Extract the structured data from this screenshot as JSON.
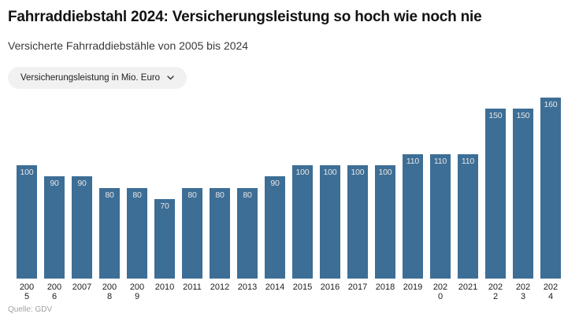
{
  "page": {
    "title": "Fahrraddiebstahl 2024: Versicherungsleistung so hoch wie noch nie",
    "subtitle": "Versicherte Fahrraddiebstähle von 2005 bis 2024",
    "source": "Quelle: GDV"
  },
  "dropdown": {
    "selected": "Versicherungsleistung in Mio. Euro",
    "icon": "chevron-down"
  },
  "colors": {
    "bar": "#3d6e96",
    "value_label": "#e6e6e6",
    "title": "#131313",
    "subtitle": "#3a3a3a",
    "pill_bg": "#f1f1f2",
    "tick_label": "#1c1c1c",
    "source": "#a2a2a2"
  },
  "chart_data": {
    "type": "bar",
    "title": "Fahrraddiebstahl 2024: Versicherungsleistung so hoch wie noch nie",
    "subtitle": "Versicherte Fahrraddiebstähle von 2005 bis 2024",
    "metric": "Versicherungsleistung in Mio. Euro",
    "categories": [
      "2005",
      "2006",
      "2007",
      "2008",
      "2009",
      "2010",
      "2011",
      "2012",
      "2013",
      "2014",
      "2015",
      "2016",
      "2017",
      "2018",
      "2019",
      "2020",
      "2021",
      "2022",
      "2023",
      "2024"
    ],
    "values": [
      100,
      90,
      90,
      80,
      80,
      70,
      80,
      80,
      80,
      90,
      100,
      100,
      100,
      100,
      110,
      110,
      110,
      150,
      150,
      160
    ],
    "unit": "Mio. Euro",
    "xlabel": "",
    "ylabel": "Versicherungsleistung in Mio. Euro",
    "ylim": [
      0,
      160
    ],
    "grid": false,
    "legend": false,
    "value_labels": "inside-top",
    "wrapped_tick_labels": [
      "2005",
      "2006",
      "2008",
      "2009",
      "2020",
      "2022",
      "2023",
      "2024"
    ],
    "source": "Quelle: GDV"
  }
}
